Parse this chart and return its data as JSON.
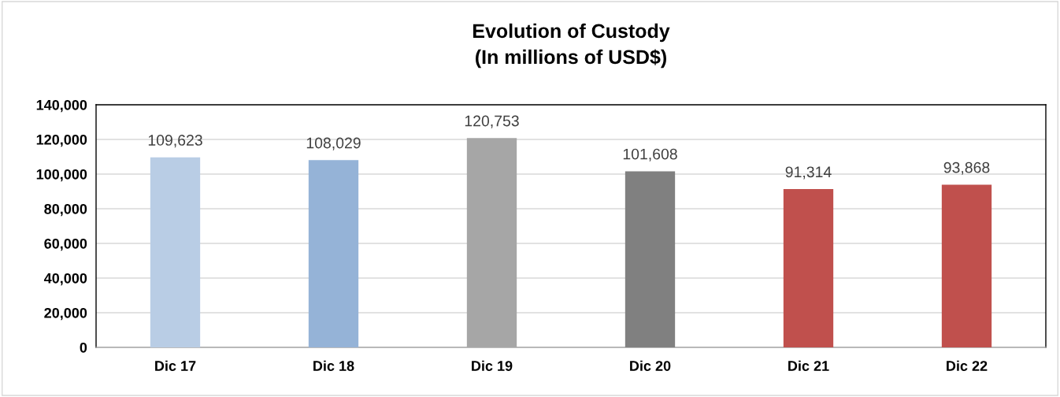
{
  "chart_data": {
    "type": "bar",
    "title": "Evolution of Custody\n(In millions of USD$)",
    "categories": [
      "Dic 17",
      "Dic 18",
      "Dic 19",
      "Dic 20",
      "Dic 21",
      "Dic 22"
    ],
    "values": [
      109623,
      108029,
      120753,
      101608,
      91314,
      93868
    ],
    "colors": [
      "#b9cde5",
      "#95b3d7",
      "#a6a6a6",
      "#808080",
      "#c0504d",
      "#c0504d"
    ],
    "value_labels": [
      "109,623",
      "108,029",
      "120,753",
      "101,608",
      "91,314",
      "93,868"
    ],
    "ylim": [
      0,
      140000
    ],
    "yticks": [
      {
        "value": 0,
        "label": "0"
      },
      {
        "value": 20000,
        "label": "20,000"
      },
      {
        "value": 40000,
        "label": "40,000"
      },
      {
        "value": 60000,
        "label": "60,000"
      },
      {
        "value": 80000,
        "label": "80,000"
      },
      {
        "value": 100000,
        "label": "100,000"
      },
      {
        "value": 120000,
        "label": "120,000"
      },
      {
        "value": 140000,
        "label": "140,000"
      }
    ],
    "grid": "y",
    "legend": false
  }
}
